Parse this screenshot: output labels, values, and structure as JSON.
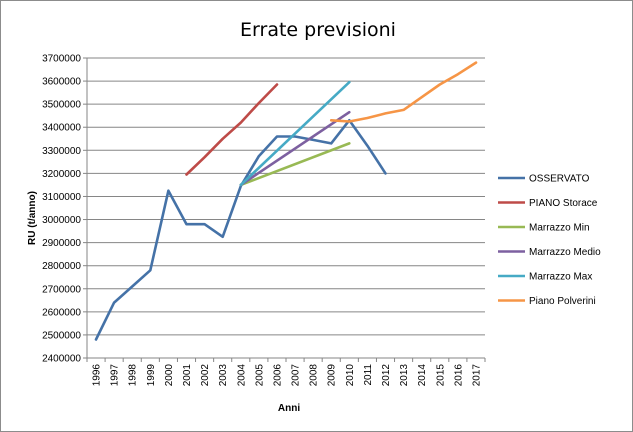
{
  "chart_data": {
    "type": "line",
    "title": "Errate previsioni",
    "xlabel": "Anni",
    "ylabel": "RU (t/anno)",
    "ylim": [
      2400000,
      3700000
    ],
    "y_ticks": [
      "2400000",
      "2500000",
      "2600000",
      "2700000",
      "2800000",
      "2900000",
      "3000000",
      "3100000",
      "3200000",
      "3300000",
      "3400000",
      "3500000",
      "3600000",
      "3700000"
    ],
    "categories": [
      "1996",
      "1997",
      "1998",
      "1999",
      "2000",
      "2001",
      "2002",
      "2003",
      "2004",
      "2005",
      "2006",
      "2007",
      "2008",
      "2009",
      "2010",
      "2011",
      "2012",
      "2013",
      "2014",
      "2015",
      "2016",
      "2017"
    ],
    "grid": "horizontal",
    "legend_position": "right",
    "series": [
      {
        "name": "OSSERVATO",
        "color": "#4572A7",
        "points": [
          [
            "1996",
            2480000
          ],
          [
            "1997",
            2640000
          ],
          [
            "1998",
            2710000
          ],
          [
            "1999",
            2780000
          ],
          [
            "2000",
            3125000
          ],
          [
            "2001",
            2980000
          ],
          [
            "2002",
            2980000
          ],
          [
            "2003",
            2925000
          ],
          [
            "2004",
            3145000
          ],
          [
            "2005",
            3275000
          ],
          [
            "2006",
            3360000
          ],
          [
            "2007",
            3360000
          ],
          [
            "2008",
            3345000
          ],
          [
            "2009",
            3330000
          ],
          [
            "2010",
            3430000
          ],
          [
            "2011",
            3320000
          ],
          [
            "2012",
            3200000
          ]
        ]
      },
      {
        "name": "PIANO Storace",
        "color": "#BE4B48",
        "points": [
          [
            "2001",
            3195000
          ],
          [
            "2002",
            3270000
          ],
          [
            "2003",
            3350000
          ],
          [
            "2004",
            3420000
          ],
          [
            "2005",
            3505000
          ],
          [
            "2006",
            3585000
          ]
        ]
      },
      {
        "name": "Marrazzo Min",
        "color": "#98B954",
        "points": [
          [
            "2004",
            3150000
          ],
          [
            "2010",
            3330000
          ]
        ]
      },
      {
        "name": "Marrazzo Medio",
        "color": "#7D60A0",
        "points": [
          [
            "2004",
            3150000
          ],
          [
            "2010",
            3465000
          ]
        ]
      },
      {
        "name": "Marrazzo Max",
        "color": "#46AAC5",
        "points": [
          [
            "2004",
            3150000
          ],
          [
            "2010",
            3595000
          ]
        ]
      },
      {
        "name": "Piano Polverini",
        "color": "#F69546",
        "points": [
          [
            "2009",
            3430000
          ],
          [
            "2010",
            3425000
          ],
          [
            "2011",
            3440000
          ],
          [
            "2012",
            3460000
          ],
          [
            "2013",
            3475000
          ],
          [
            "2014",
            3530000
          ],
          [
            "2015",
            3585000
          ],
          [
            "2016",
            3630000
          ],
          [
            "2017",
            3680000
          ]
        ]
      }
    ]
  }
}
